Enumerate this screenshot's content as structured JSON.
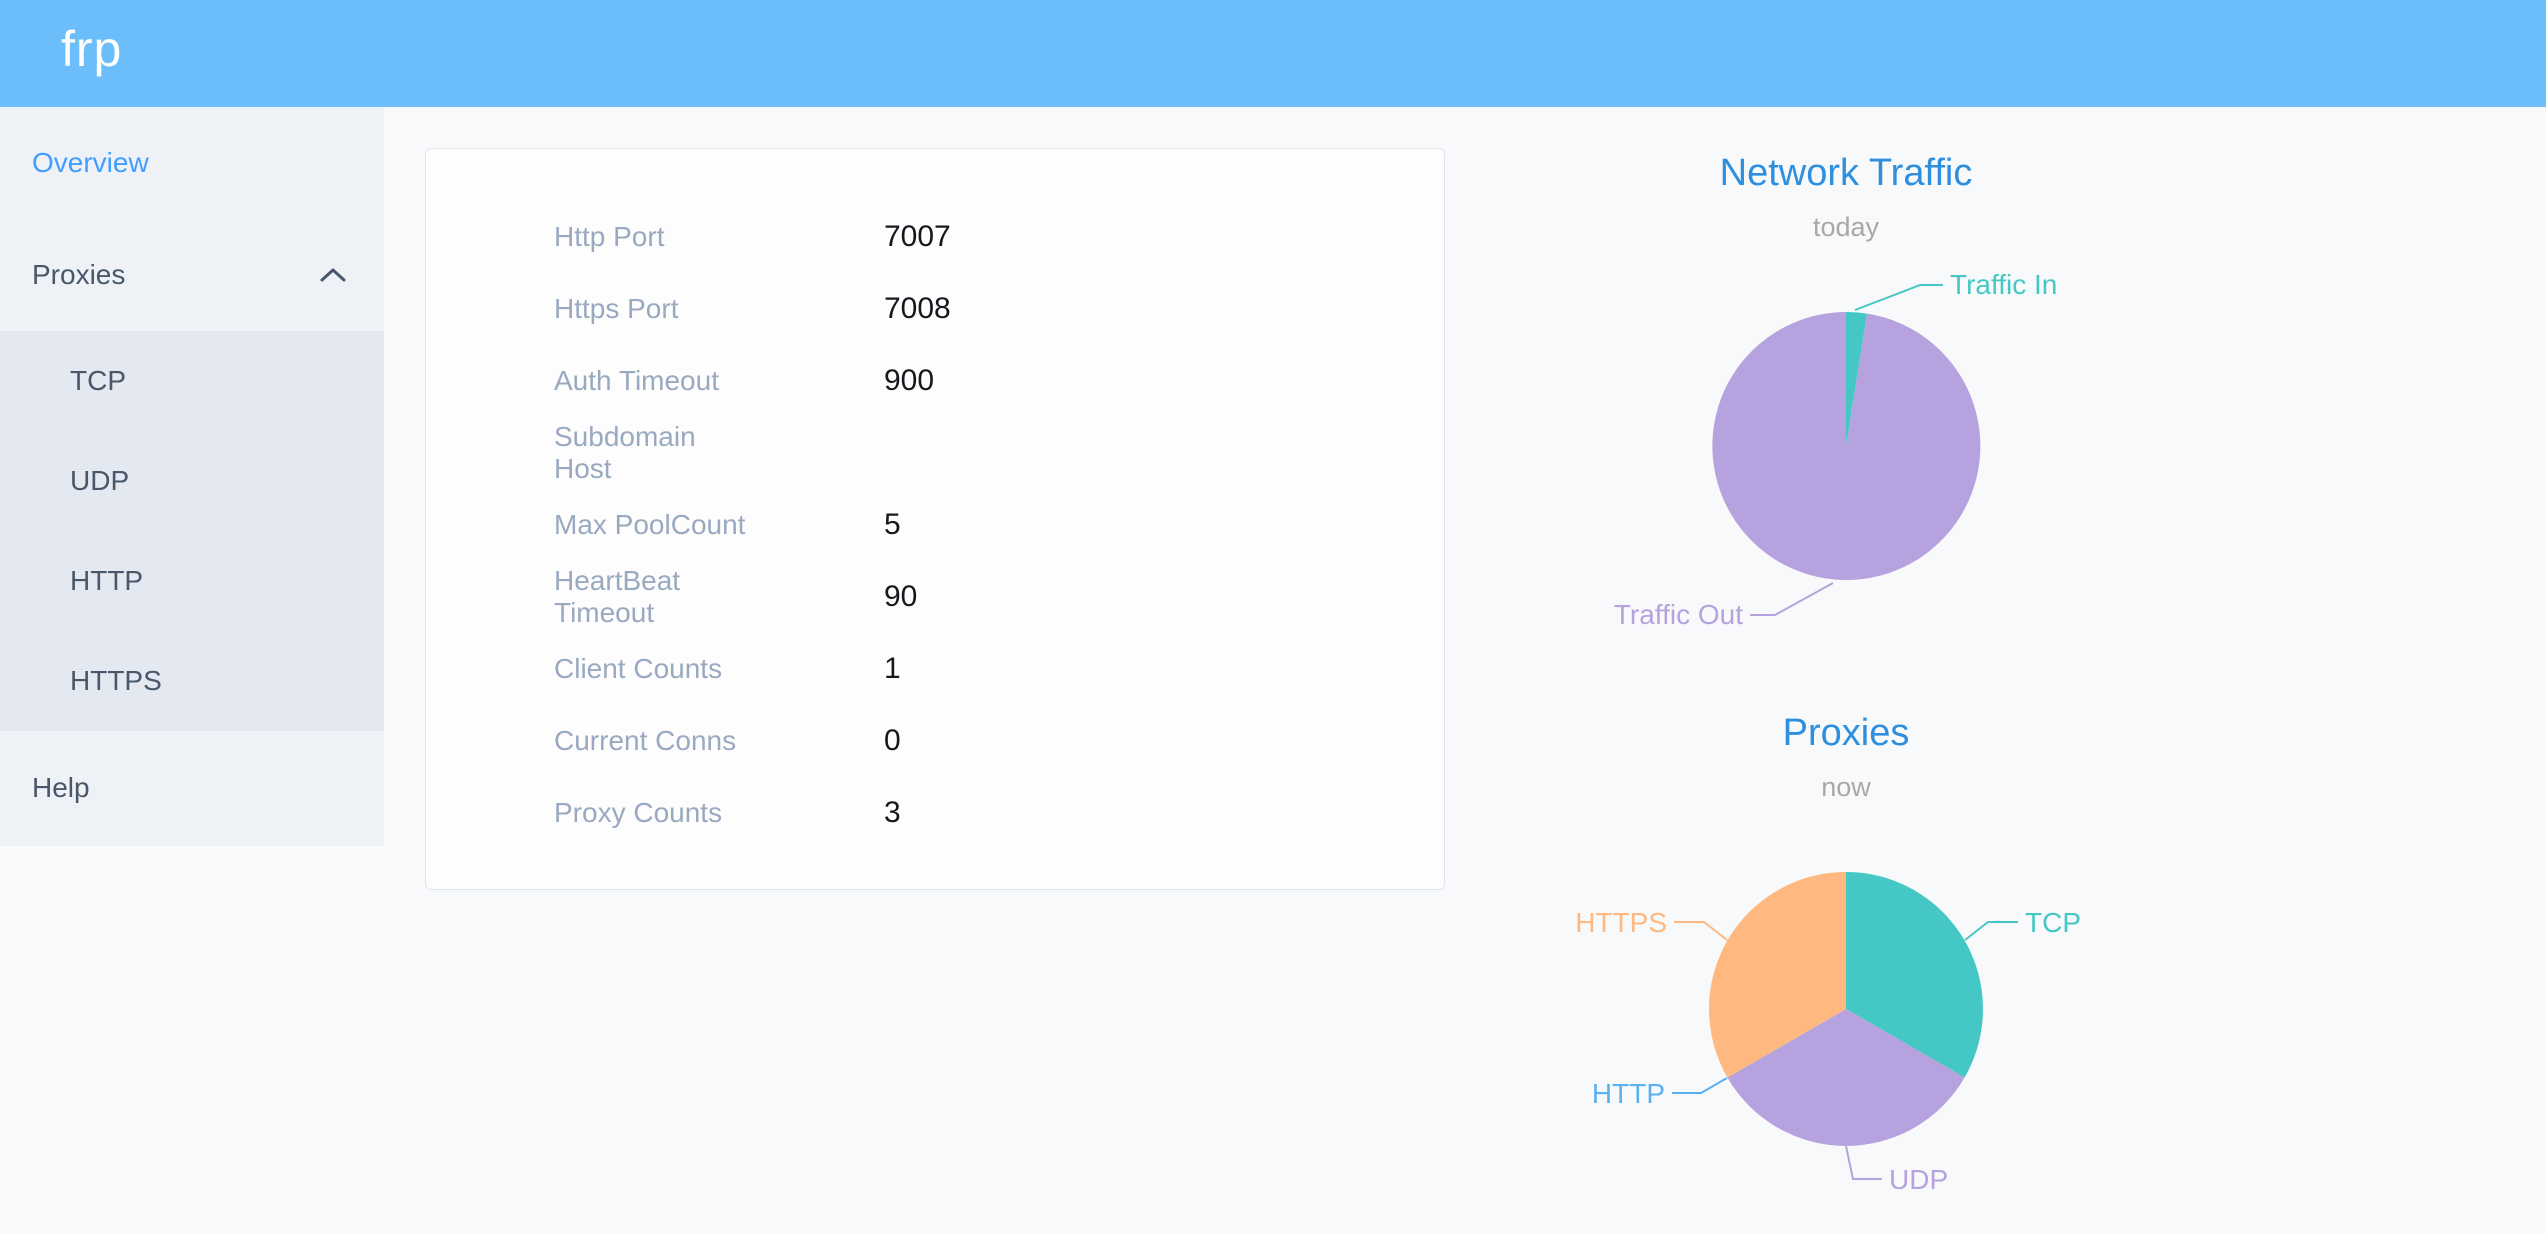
{
  "header": {
    "logo": "frp"
  },
  "sidebar": {
    "overview_label": "Overview",
    "proxies_label": "Proxies",
    "submenu": [
      "TCP",
      "UDP",
      "HTTP",
      "HTTPS"
    ],
    "help_label": "Help",
    "active_item": "Overview",
    "accent_color": "#409eff"
  },
  "overview_card": {
    "rows": [
      {
        "label": "Http Port",
        "value": "7007"
      },
      {
        "label": "Https Port",
        "value": "7008"
      },
      {
        "label": "Auth Timeout",
        "value": "900"
      },
      {
        "label": "Subdomain Host",
        "value": ""
      },
      {
        "label": "Max PoolCount",
        "value": "5"
      },
      {
        "label": "HeartBeat Timeout",
        "value": "90"
      },
      {
        "label": "Client Counts",
        "value": "1"
      },
      {
        "label": "Current Conns",
        "value": "0"
      },
      {
        "label": "Proxy Counts",
        "value": "3"
      }
    ]
  },
  "chart_data": [
    {
      "type": "pie",
      "title": "Network Traffic",
      "subtitle": "today",
      "legend_position": "callout-labels",
      "slices": [
        {
          "label": "Traffic In",
          "value": 2.5,
          "color": "#45c8c5"
        },
        {
          "label": "Traffic Out",
          "value": 97.5,
          "color": "#b6a2de"
        }
      ],
      "value_unit": "% of circle (estimated from slice angles; no numeric labels shown)"
    },
    {
      "type": "pie",
      "title": "Proxies",
      "subtitle": "now",
      "legend_position": "callout-labels",
      "slices": [
        {
          "label": "TCP",
          "value": 1,
          "color": "#45c8c5"
        },
        {
          "label": "UDP",
          "value": 1,
          "color": "#b6a2de"
        },
        {
          "label": "HTTP",
          "value": 0,
          "color": "#5ab1ef"
        },
        {
          "label": "HTTPS",
          "value": 1,
          "color": "#ffb980"
        }
      ]
    }
  ],
  "colors": {
    "header_bg": "#6cbefa",
    "sidebar_bg": "#eef1f6",
    "submenu_bg": "#e4e8f1",
    "sidebar_text": "#48576a",
    "chart_title_blue": "#2d8fdd",
    "card_label_gray": "#99a9bf"
  }
}
